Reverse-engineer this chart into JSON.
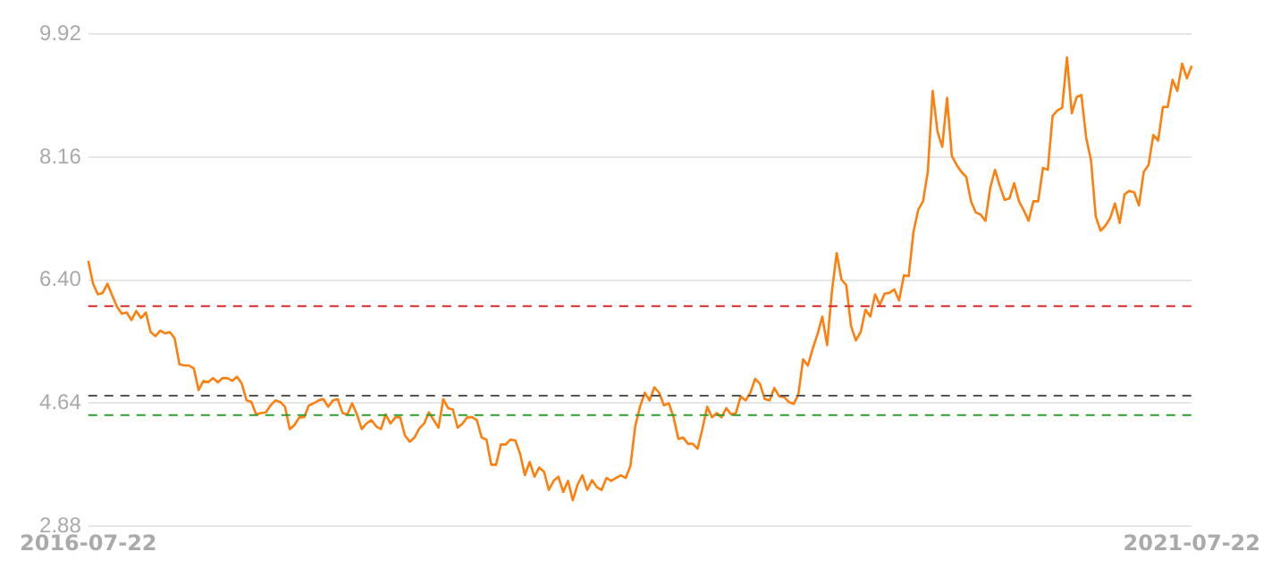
{
  "chart_data": {
    "type": "line",
    "categories": [
      "2016-07-22",
      null,
      null,
      null,
      null,
      null,
      null,
      null,
      null,
      null,
      null,
      null,
      null,
      null,
      null,
      null,
      null,
      null,
      null,
      null,
      null,
      null,
      null,
      null,
      null,
      null,
      null,
      null,
      null,
      null,
      null,
      null,
      null,
      null,
      null,
      null,
      null,
      null,
      null,
      null,
      null,
      null,
      null,
      null,
      null,
      null,
      null,
      null,
      null,
      null,
      null,
      null,
      null,
      null,
      null,
      null,
      null,
      null,
      null,
      null,
      null,
      null,
      null,
      null,
      null,
      null,
      null,
      null,
      null,
      null,
      null,
      null,
      null,
      null,
      null,
      null,
      null,
      null,
      null,
      null,
      null,
      null,
      null,
      null,
      null,
      null,
      null,
      null,
      null,
      null,
      null,
      null,
      null,
      null,
      null,
      null,
      null,
      null,
      null,
      null,
      null,
      null,
      null,
      null,
      null,
      null,
      null,
      null,
      null,
      null,
      null,
      null,
      null,
      null,
      null,
      null,
      null,
      null,
      null,
      null,
      null,
      null,
      null,
      null,
      null,
      null,
      null,
      null,
      null,
      null,
      null,
      null,
      null,
      null,
      null,
      null,
      null,
      null,
      null,
      null,
      null,
      null,
      null,
      null,
      null,
      null,
      null,
      null,
      null,
      null,
      null,
      null,
      null,
      null,
      null,
      null,
      null,
      null,
      null,
      null,
      null,
      null,
      null,
      null,
      null,
      null,
      null,
      null,
      null,
      null,
      null,
      null,
      null,
      null,
      null,
      null,
      null,
      null,
      null,
      null,
      null,
      null,
      null,
      null,
      null,
      null,
      null,
      null,
      null,
      null,
      null,
      null,
      null,
      null,
      null,
      null,
      null,
      null,
      null,
      null,
      null,
      null,
      null,
      null,
      null,
      null,
      null,
      null,
      null,
      null,
      null,
      null,
      null,
      null,
      null,
      null,
      null,
      null,
      null,
      null,
      null,
      null,
      null,
      null,
      null,
      null,
      null,
      null,
      null,
      null,
      "2021-07-22"
    ],
    "series": [
      {
        "color": "#ff7f0e",
        "values": [
          6.68,
          6.35,
          6.2,
          6.22,
          6.35,
          6.18,
          6.02,
          5.92,
          5.94,
          5.83,
          5.96,
          5.86,
          5.94,
          5.66,
          5.6,
          5.68,
          5.64,
          5.66,
          5.57,
          5.2,
          5.18,
          5.18,
          5.14,
          4.83,
          4.96,
          4.94,
          5.0,
          4.94,
          5.0,
          5.0,
          4.96,
          5.02,
          4.92,
          4.68,
          4.66,
          4.48,
          4.5,
          4.51,
          4.61,
          4.68,
          4.66,
          4.59,
          4.27,
          4.33,
          4.44,
          4.44,
          4.61,
          4.64,
          4.68,
          4.7,
          4.59,
          4.68,
          4.7,
          4.5,
          4.48,
          4.64,
          4.48,
          4.27,
          4.35,
          4.4,
          4.31,
          4.27,
          4.48,
          4.35,
          4.44,
          4.44,
          4.18,
          4.09,
          4.15,
          4.28,
          4.35,
          4.51,
          4.4,
          4.29,
          4.7,
          4.57,
          4.55,
          4.29,
          4.35,
          4.44,
          4.44,
          4.4,
          4.15,
          4.12,
          3.76,
          3.76,
          4.05,
          4.05,
          4.12,
          4.11,
          3.92,
          3.61,
          3.8,
          3.59,
          3.72,
          3.66,
          3.4,
          3.53,
          3.59,
          3.37,
          3.53,
          3.25,
          3.48,
          3.61,
          3.4,
          3.54,
          3.44,
          3.4,
          3.57,
          3.53,
          3.57,
          3.61,
          3.57,
          3.74,
          4.31,
          4.59,
          4.79,
          4.68,
          4.87,
          4.79,
          4.61,
          4.64,
          4.44,
          4.13,
          4.15,
          4.06,
          4.06,
          3.99,
          4.27,
          4.59,
          4.44,
          4.5,
          4.44,
          4.57,
          4.48,
          4.5,
          4.74,
          4.68,
          4.79,
          4.99,
          4.92,
          4.7,
          4.68,
          4.86,
          4.74,
          4.73,
          4.66,
          4.63,
          4.76,
          5.27,
          5.18,
          5.42,
          5.63,
          5.88,
          5.47,
          6.24,
          6.79,
          6.41,
          6.33,
          5.74,
          5.54,
          5.66,
          5.98,
          5.88,
          6.2,
          6.05,
          6.21,
          6.22,
          6.27,
          6.11,
          6.47,
          6.46,
          7.09,
          7.41,
          7.53,
          7.96,
          9.11,
          8.53,
          8.31,
          9.01,
          8.18,
          8.05,
          7.95,
          7.88,
          7.53,
          7.37,
          7.34,
          7.25,
          7.72,
          7.98,
          7.75,
          7.55,
          7.57,
          7.79,
          7.53,
          7.4,
          7.25,
          7.53,
          7.53,
          8.01,
          7.98,
          8.75,
          8.83,
          8.87,
          9.59,
          8.79,
          9.02,
          9.05,
          8.44,
          8.12,
          7.31,
          7.11,
          7.18,
          7.29,
          7.5,
          7.22,
          7.63,
          7.68,
          7.66,
          7.47,
          7.95,
          8.05,
          8.48,
          8.4,
          8.88,
          8.88,
          9.27,
          9.11,
          9.5,
          9.29,
          9.47
        ]
      }
    ],
    "ylim": [
      2.88,
      9.92
    ],
    "yticks": [
      2.88,
      4.64,
      {
        "value": 6.4,
        "label": "6.40"
      },
      8.16,
      9.92
    ],
    "grid": "y",
    "legend": false,
    "marker": "none",
    "line_style": "solid",
    "ref_lines": [
      {
        "axis": "y",
        "value": 6.03,
        "color": "#d62728",
        "line_style": "dashed"
      },
      {
        "axis": "y",
        "value": 4.75,
        "color": "#555555",
        "line_style": "dashed"
      },
      {
        "axis": "y",
        "value": 4.47,
        "color": "#2ca02c",
        "line_style": "dashed"
      }
    ]
  }
}
